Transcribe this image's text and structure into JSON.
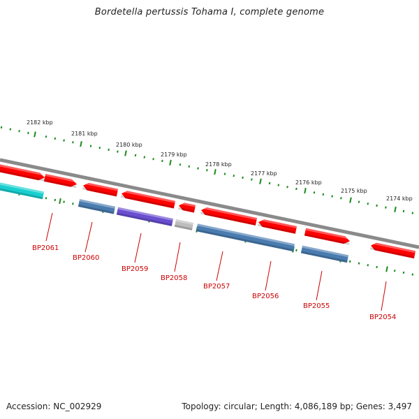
{
  "title": "Bordetella pertussis Tohama I, complete genome",
  "footer": {
    "accession": "Accession: NC_002929",
    "summary": "Topology: circular; Length: 4,086,189 bp; Genes: 3,497"
  },
  "colors": {
    "backbone": "#8a8a8a",
    "tick": "#1a8a1a",
    "forward_gene": "#ff0000",
    "reverse_gene": "#4a7cb0",
    "reverse_gene_purple": "#6a4fd0",
    "rna_gene": "#19cfcf",
    "pseudo_gene": "#bdbdbd",
    "gene_label": "#cc0000"
  },
  "ticks": [
    {
      "label": "2182 kbp"
    },
    {
      "label": "2181 kbp"
    },
    {
      "label": "2180 kbp"
    },
    {
      "label": "2179 kbp"
    },
    {
      "label": "2178 kbp"
    },
    {
      "label": "2177 kbp"
    },
    {
      "label": "2176 kbp"
    },
    {
      "label": "2175 kbp"
    },
    {
      "label": "2174 kbp"
    }
  ],
  "genes": [
    {
      "name": "BP2061"
    },
    {
      "name": "BP2060"
    },
    {
      "name": "BP2059"
    },
    {
      "name": "BP2058"
    },
    {
      "name": "BP2057"
    },
    {
      "name": "BP2056"
    },
    {
      "name": "BP2055"
    },
    {
      "name": "BP2054"
    }
  ]
}
